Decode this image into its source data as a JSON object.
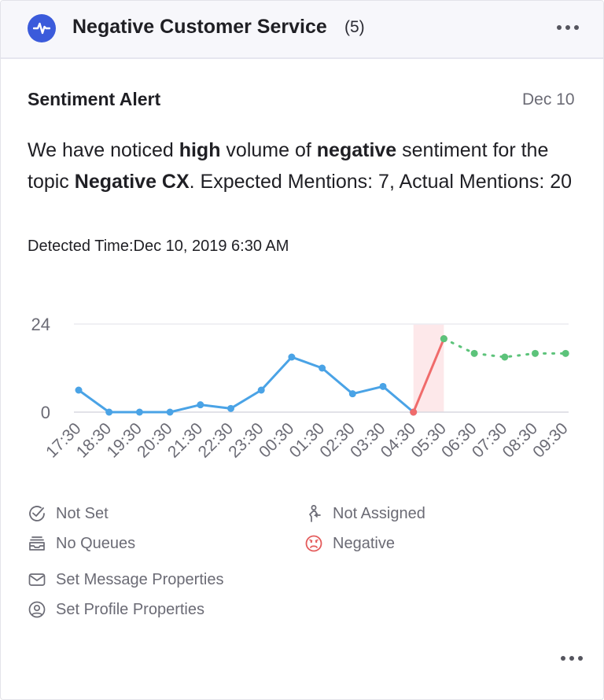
{
  "header": {
    "title": "Negative Customer Service",
    "count": "(5)"
  },
  "alert": {
    "title": "Sentiment Alert",
    "date": "Dec 10",
    "message": {
      "p1": "We have noticed ",
      "b1": "high",
      "p2": " volume of ",
      "b2": "negative",
      "p3": " sentiment for the topic ",
      "b3": "Negative CX",
      "p4": ". Expected Mentions: 7, Actual Mentions: 20"
    },
    "detected": "Detected Time:Dec 10, 2019 6:30 AM"
  },
  "chart_data": {
    "type": "line",
    "categories": [
      "17:30",
      "18:30",
      "19:30",
      "20:30",
      "21:30",
      "22:30",
      "23:30",
      "00:30",
      "01:30",
      "02:30",
      "03:30",
      "04:30",
      "05:30",
      "06:30",
      "07:30",
      "08:30",
      "09:30"
    ],
    "series": [
      {
        "values": [
          6,
          0,
          0,
          0,
          2,
          1,
          6,
          15,
          12,
          5,
          7,
          0,
          null,
          null,
          null,
          null,
          null
        ],
        "color": "#4aa3e6",
        "style": "solid"
      },
      {
        "values": [
          null,
          null,
          null,
          null,
          null,
          null,
          null,
          null,
          null,
          null,
          null,
          0,
          20,
          null,
          null,
          null,
          null
        ],
        "color": "#f06b6b",
        "style": "solid"
      },
      {
        "values": [
          null,
          null,
          null,
          null,
          null,
          null,
          null,
          null,
          null,
          null,
          null,
          null,
          20,
          16,
          15,
          16,
          16
        ],
        "color": "#5cc37a",
        "style": "dotted"
      }
    ],
    "ylim": [
      0,
      24
    ],
    "yticks": [
      "0",
      "24"
    ],
    "highlight_category": "05:30",
    "highlight_color": "#fde8ea"
  },
  "meta": {
    "status": "Not Set",
    "assignee": "Not Assigned",
    "queues": "No Queues",
    "sentiment": "Negative",
    "message_props": "Set Message Properties",
    "profile_props": "Set Profile Properties"
  },
  "icons": {
    "logo": "activity-pulse-icon",
    "status": "check-circle-icon",
    "assignee": "person-arrow-icon",
    "queues": "inbox-stack-icon",
    "sentiment": "frown-face-icon",
    "message_props": "envelope-icon",
    "profile_props": "user-circle-icon"
  },
  "colors": {
    "brand": "#3b5bdb",
    "negative": "#e45b5b",
    "muted": "#6b6b75"
  }
}
